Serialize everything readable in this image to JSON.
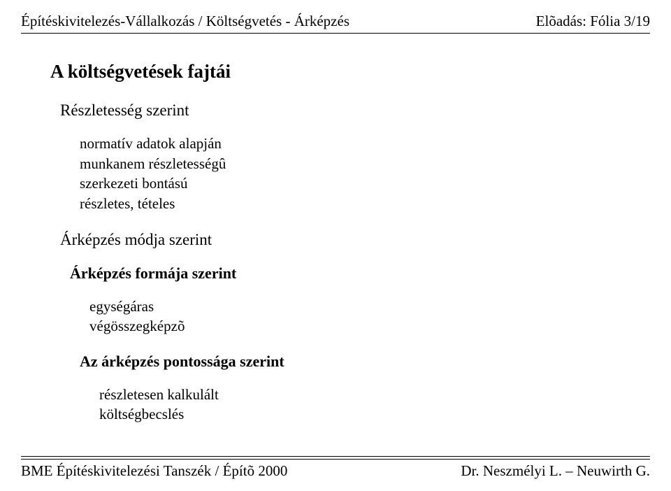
{
  "header": {
    "left": "Építéskivitelezés-Vállalkozás / Költségvetés - Árképzés",
    "right": "Elõadás: Fólia 3/19"
  },
  "main": {
    "title": "A költségvetések fajtái",
    "section1": {
      "heading": "Részletesség szerint",
      "items": [
        "normatív adatok alapján",
        "munkanem részletességû",
        "szerkezeti bontású",
        "részletes, tételes"
      ]
    },
    "section2": {
      "heading": "Árképzés módja szerint",
      "sub": {
        "heading": "Árképzés formája szerint",
        "items": [
          "egységáras",
          "végösszegképzõ"
        ],
        "sub": {
          "heading": "Az árképzés pontossága szerint",
          "items": [
            "részletesen kalkulált",
            "költségbecslés"
          ]
        }
      }
    }
  },
  "footer": {
    "left": "BME Építéskivitelezési Tanszék / Építõ 2000",
    "right": "Dr. Neszmélyi L. – Neuwirth G."
  }
}
